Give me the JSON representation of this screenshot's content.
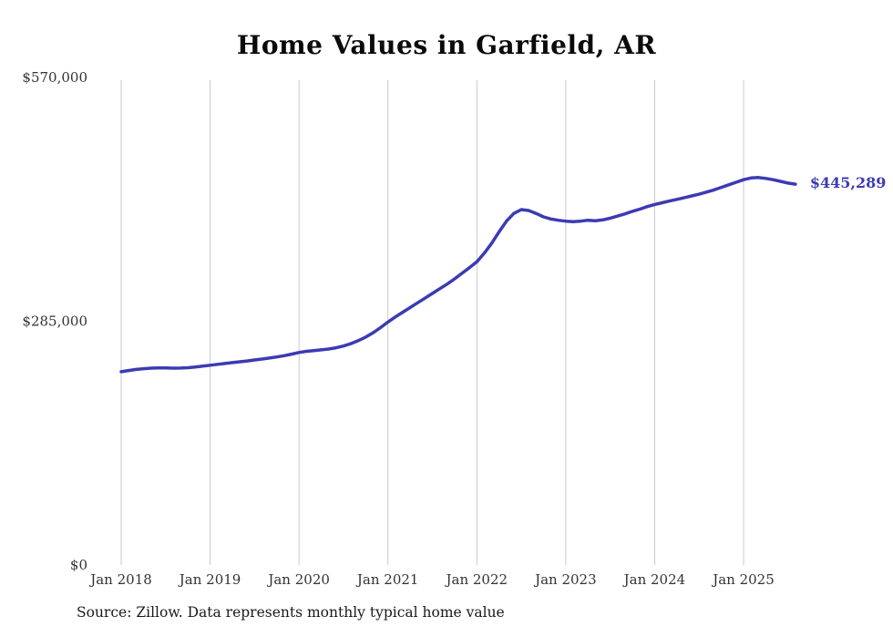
{
  "title": "Home Values in Garfield, AR",
  "source_note": "Source: Zillow. Data represents monthly typical home value",
  "chart_data": {
    "type": "line",
    "title": "Home Values in Garfield, AR",
    "series_name": "Monthly typical home value",
    "end_label": "$445,289",
    "line_color": "#3b3bb4",
    "grid_color": "#c9c9c9",
    "axis_label_color": "#333333",
    "ylim": [
      0,
      570000
    ],
    "grid": "vertical-only",
    "legend_position": "none",
    "y_ticks": [
      {
        "value": 0,
        "label": "$0"
      },
      {
        "value": 285000,
        "label": "$285,000"
      },
      {
        "value": 570000,
        "label": "$570,000"
      }
    ],
    "x_ticks": [
      "Jan 2018",
      "Jan 2019",
      "Jan 2020",
      "Jan 2021",
      "Jan 2022",
      "Jan 2023",
      "Jan 2024",
      "Jan 2025"
    ],
    "months": [
      "2018-01",
      "2018-02",
      "2018-03",
      "2018-04",
      "2018-05",
      "2018-06",
      "2018-07",
      "2018-08",
      "2018-09",
      "2018-10",
      "2018-11",
      "2018-12",
      "2019-01",
      "2019-02",
      "2019-03",
      "2019-04",
      "2019-05",
      "2019-06",
      "2019-07",
      "2019-08",
      "2019-09",
      "2019-10",
      "2019-11",
      "2019-12",
      "2020-01",
      "2020-02",
      "2020-03",
      "2020-04",
      "2020-05",
      "2020-06",
      "2020-07",
      "2020-08",
      "2020-09",
      "2020-10",
      "2020-11",
      "2020-12",
      "2021-01",
      "2021-02",
      "2021-03",
      "2021-04",
      "2021-05",
      "2021-06",
      "2021-07",
      "2021-08",
      "2021-09",
      "2021-10",
      "2021-11",
      "2021-12",
      "2022-01",
      "2022-02",
      "2022-03",
      "2022-04",
      "2022-05",
      "2022-06",
      "2022-07",
      "2022-08",
      "2022-09",
      "2022-10",
      "2022-11",
      "2022-12",
      "2023-01",
      "2023-02",
      "2023-03",
      "2023-04",
      "2023-05",
      "2023-06",
      "2023-07",
      "2023-08",
      "2023-09",
      "2023-10",
      "2023-11",
      "2023-12",
      "2024-01",
      "2024-02",
      "2024-03",
      "2024-04",
      "2024-05",
      "2024-06",
      "2024-07",
      "2024-08",
      "2024-09",
      "2024-10",
      "2024-11",
      "2024-12",
      "2025-01",
      "2025-02",
      "2025-03",
      "2025-04",
      "2025-05",
      "2025-06",
      "2025-07",
      "2025-08"
    ],
    "values": [
      226000,
      227400,
      228600,
      229500,
      230100,
      230400,
      230300,
      230100,
      230200,
      230700,
      231500,
      232500,
      233500,
      234600,
      235600,
      236600,
      237600,
      238600,
      239700,
      240800,
      242000,
      243200,
      244700,
      246500,
      248500,
      249800,
      250700,
      251500,
      252500,
      254000,
      256000,
      258800,
      262300,
      266500,
      271500,
      277500,
      284000,
      290000,
      295500,
      301000,
      306500,
      312000,
      317500,
      323000,
      328500,
      334500,
      341000,
      347500,
      354500,
      364500,
      376000,
      389500,
      402000,
      411000,
      415500,
      414500,
      411000,
      407000,
      404500,
      403000,
      402000,
      401500,
      402000,
      403000,
      402500,
      403500,
      405500,
      408000,
      410500,
      413500,
      416000,
      419000,
      421500,
      423500,
      425500,
      427500,
      429500,
      431500,
      433500,
      436000,
      438500,
      441500,
      444500,
      447500,
      450500,
      452500,
      453000,
      452000,
      450500,
      448500,
      446500,
      445289
    ]
  }
}
